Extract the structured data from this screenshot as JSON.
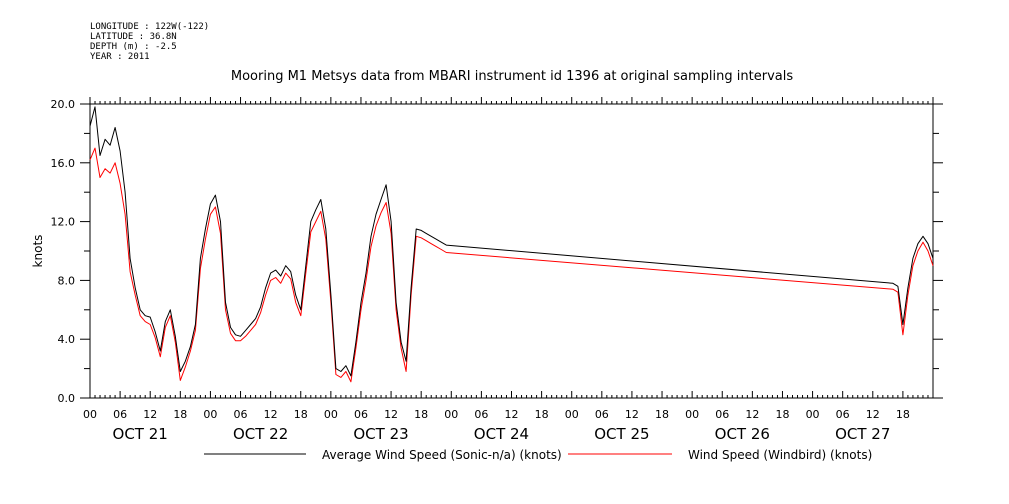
{
  "metadata": {
    "longitude": "LONGITUDE : 122W(-122)",
    "latitude": "LATITUDE : 36.8N",
    "depth": "DEPTH (m) : -2.5",
    "year": "YEAR : 2011"
  },
  "chart_data": {
    "type": "line",
    "title": "Mooring M1 Metsys data from MBARI instrument id 1396 at original sampling intervals",
    "ylabel": "knots",
    "xlabel": "",
    "ylim": [
      0,
      20
    ],
    "yticks": [
      "0.0",
      "4.0",
      "8.0",
      "12.0",
      "16.0",
      "20.0"
    ],
    "xlim_hours": [
      0,
      168
    ],
    "xtick_labels": [
      "00",
      "06",
      "12",
      "18",
      "00",
      "06",
      "12",
      "18",
      "00",
      "06",
      "12",
      "18",
      "00",
      "06",
      "12",
      "18",
      "00",
      "06",
      "12",
      "18",
      "00",
      "06",
      "12",
      "18",
      "00",
      "06",
      "12",
      "18"
    ],
    "day_labels": [
      "OCT 21",
      "OCT 22",
      "OCT 23",
      "OCT 24",
      "OCT 25",
      "OCT 26",
      "OCT 27"
    ],
    "grid": false,
    "legend_position": "bottom",
    "series": [
      {
        "name": "Average Wind Speed (Sonic-n/a) (knots)",
        "color": "#000000",
        "x": [
          0,
          1,
          2,
          3,
          4,
          5,
          6,
          7,
          8,
          9,
          10,
          11,
          12,
          13,
          14,
          15,
          16,
          17,
          18,
          19,
          20,
          21,
          22,
          23,
          24,
          25,
          26,
          27,
          28,
          29,
          30,
          31,
          32,
          33,
          34,
          35,
          36,
          37,
          38,
          39,
          40,
          41,
          42,
          43,
          44,
          45,
          46,
          47,
          48,
          49,
          50,
          51,
          52,
          53,
          54,
          55,
          56,
          57,
          58,
          59,
          60,
          61,
          62,
          63,
          64,
          65,
          66,
          67,
          68,
          69,
          70,
          71,
          160,
          161,
          162,
          163,
          164,
          165,
          166,
          167,
          168
        ],
        "y": [
          18.5,
          19.8,
          16.5,
          17.6,
          17.2,
          18.4,
          16.8,
          14.0,
          9.5,
          7.5,
          6.0,
          5.6,
          5.5,
          4.5,
          3.2,
          5.2,
          6.0,
          4.2,
          1.8,
          2.5,
          3.5,
          5.0,
          9.5,
          11.5,
          13.2,
          13.8,
          12.0,
          6.5,
          4.8,
          4.3,
          4.2,
          4.6,
          5.0,
          5.4,
          6.2,
          7.5,
          8.5,
          8.7,
          8.3,
          9.0,
          8.6,
          7.0,
          6.0,
          9.0,
          12.0,
          12.8,
          13.5,
          11.5,
          7.0,
          2.0,
          1.8,
          2.2,
          1.5,
          3.8,
          6.5,
          8.5,
          11.0,
          12.5,
          13.5,
          14.5,
          12.0,
          6.5,
          3.8,
          2.5,
          7.5,
          11.5,
          11.4,
          11.2,
          11.0,
          10.8,
          10.6,
          10.4,
          7.8,
          7.6,
          5.0,
          7.5,
          9.5,
          10.5,
          11.0,
          10.5,
          9.5
        ]
      },
      {
        "name": "Wind Speed (Windbird) (knots)",
        "color": "#ff0000",
        "x": [
          0,
          1,
          2,
          3,
          4,
          5,
          6,
          7,
          8,
          9,
          10,
          11,
          12,
          13,
          14,
          15,
          16,
          17,
          18,
          19,
          20,
          21,
          22,
          23,
          24,
          25,
          26,
          27,
          28,
          29,
          30,
          31,
          32,
          33,
          34,
          35,
          36,
          37,
          38,
          39,
          40,
          41,
          42,
          43,
          44,
          45,
          46,
          47,
          48,
          49,
          50,
          51,
          52,
          53,
          54,
          55,
          56,
          57,
          58,
          59,
          60,
          61,
          62,
          63,
          64,
          65,
          66,
          67,
          68,
          69,
          70,
          71,
          160,
          161,
          162,
          163,
          164,
          165,
          166,
          167,
          168
        ],
        "y": [
          16.2,
          17.0,
          15.0,
          15.6,
          15.3,
          16.0,
          14.6,
          12.5,
          8.6,
          7.0,
          5.6,
          5.2,
          5.0,
          4.1,
          2.8,
          4.8,
          5.6,
          3.8,
          1.2,
          2.1,
          3.2,
          4.6,
          8.8,
          10.8,
          12.5,
          13.0,
          11.2,
          6.0,
          4.4,
          3.9,
          3.9,
          4.2,
          4.6,
          5.0,
          5.8,
          7.0,
          8.0,
          8.2,
          7.8,
          8.5,
          8.1,
          6.5,
          5.6,
          8.5,
          11.3,
          12.0,
          12.7,
          10.8,
          6.5,
          1.6,
          1.4,
          1.8,
          1.1,
          3.4,
          6.0,
          8.0,
          10.3,
          11.7,
          12.6,
          13.3,
          11.2,
          6.0,
          3.4,
          1.8,
          7.0,
          11.0,
          10.9,
          10.7,
          10.5,
          10.3,
          10.1,
          9.9,
          7.4,
          7.2,
          4.3,
          7.0,
          9.0,
          10.0,
          10.6,
          10.0,
          9.0
        ]
      }
    ]
  }
}
